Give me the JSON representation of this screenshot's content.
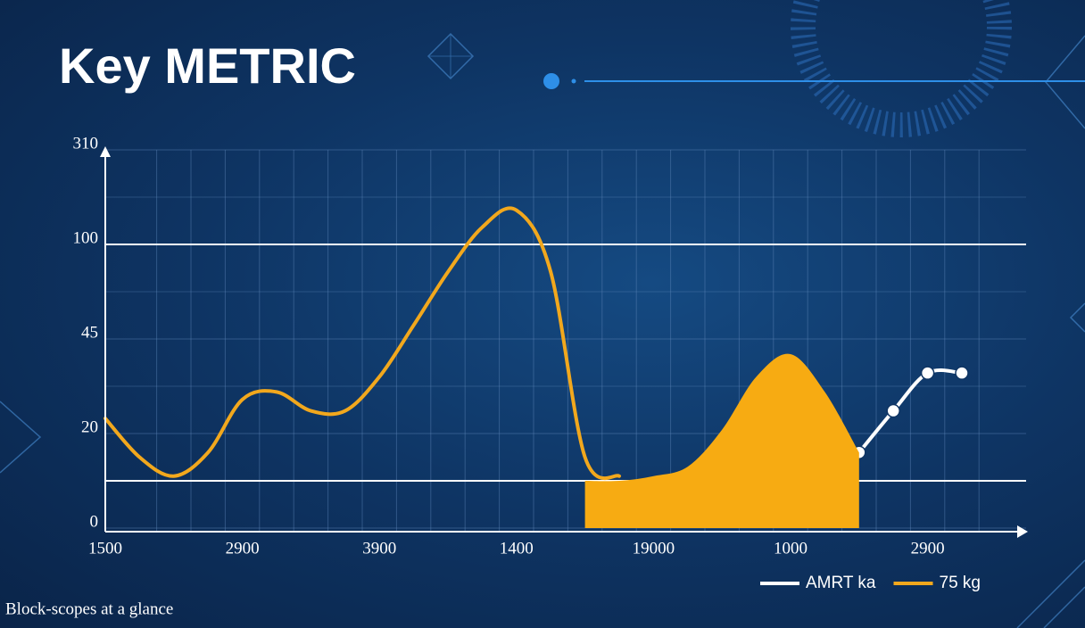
{
  "chart_data": {
    "type": "line",
    "title": "Key METRIC",
    "footer": "Block-scopes at a glance",
    "categories": [
      "1500",
      null,
      null,
      null,
      "2900",
      null,
      null,
      null,
      "3900",
      null,
      null,
      null,
      "1400",
      null,
      null,
      null,
      "19000",
      null,
      null,
      null,
      "1000",
      null,
      null,
      null,
      "2900",
      null
    ],
    "series": [
      {
        "name": "AMRT ka",
        "color": "#ffffff",
        "type": "line",
        "markers": true,
        "values": [
          null,
          null,
          null,
          null,
          null,
          null,
          null,
          null,
          null,
          null,
          null,
          null,
          null,
          null,
          null,
          null,
          null,
          null,
          null,
          null,
          null,
          null,
          16,
          26,
          36,
          36
        ]
      },
      {
        "name": "75 kg",
        "color": "#f2a81d",
        "type": "line",
        "values": [
          24,
          15,
          11,
          16,
          29,
          31,
          26,
          26,
          35,
          53,
          84,
          138,
          176,
          84,
          15,
          11,
          null,
          null,
          null,
          null,
          null,
          null,
          null,
          null,
          null,
          null
        ]
      },
      {
        "color": "#f7ab12",
        "type": "area",
        "values": [
          null,
          null,
          null,
          null,
          null,
          null,
          null,
          null,
          null,
          null,
          null,
          null,
          null,
          null,
          10,
          10,
          11,
          13,
          21,
          35,
          41,
          31,
          16,
          null,
          null,
          null
        ]
      }
    ],
    "ylim": [
      0,
      310
    ],
    "yticks": [
      0,
      20,
      45,
      100,
      310
    ],
    "reference_lines": [
      10,
      100
    ],
    "grid": true
  }
}
